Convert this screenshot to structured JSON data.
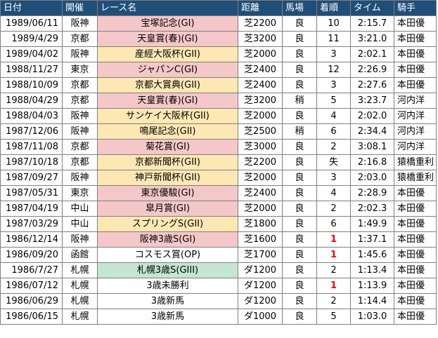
{
  "headers": [
    "日付",
    "開催",
    "レース名",
    "距離",
    "馬場",
    "着順",
    "タイム",
    "騎手"
  ],
  "grade_colors": {
    "G1": "#f4c7c8",
    "G2": "#fde8b4",
    "G3": "#c4e6d3"
  },
  "rows": [
    {
      "date": "1989/06/11",
      "venue": "阪神",
      "race": "宝塚記念(GI)",
      "grade": "G1",
      "distance": "芝2200",
      "track": "良",
      "position": "10",
      "time": "2:15.7",
      "jockey": "本田優"
    },
    {
      "date": "1989/4/29",
      "venue": "京都",
      "race": "天皇賞(春)(GI)",
      "grade": "G1",
      "distance": "芝3200",
      "track": "良",
      "position": "11",
      "time": "3:21.0",
      "jockey": "本田優"
    },
    {
      "date": "1989/04/02",
      "venue": "阪神",
      "race": "産經大阪杯(GII)",
      "grade": "G2",
      "distance": "芝2000",
      "track": "良",
      "position": "3",
      "time": "2:02.1",
      "jockey": "本田優"
    },
    {
      "date": "1988/11/27",
      "venue": "東京",
      "race": "ジャパンC(GI)",
      "grade": "G1",
      "distance": "芝2400",
      "track": "良",
      "position": "12",
      "time": "2:26.9",
      "jockey": "本田優"
    },
    {
      "date": "1988/10/09",
      "venue": "京都",
      "race": "京都大賞典(GII)",
      "grade": "G2",
      "distance": "芝2400",
      "track": "良",
      "position": "3",
      "time": "2:27.6",
      "jockey": "本田優"
    },
    {
      "date": "1988/04/29",
      "venue": "京都",
      "race": "天皇賞(春)(GI)",
      "grade": "G1",
      "distance": "芝3200",
      "track": "稍",
      "position": "5",
      "time": "3:23.7",
      "jockey": "河内洋"
    },
    {
      "date": "1988/04/03",
      "venue": "阪神",
      "race": "サンケイ大阪杯(GII)",
      "grade": "G2",
      "distance": "芝2000",
      "track": "良",
      "position": "4",
      "time": "2:02.0",
      "jockey": "河内洋"
    },
    {
      "date": "1987/12/06",
      "venue": "阪神",
      "race": "鳴尾記念(GII)",
      "grade": "G2",
      "distance": "芝2500",
      "track": "稍",
      "position": "6",
      "time": "2:34.4",
      "jockey": "河内洋"
    },
    {
      "date": "1987/11/08",
      "venue": "京都",
      "race": "菊花賞(GI)",
      "grade": "G1",
      "distance": "芝3000",
      "track": "良",
      "position": "2",
      "time": "3:08.1",
      "jockey": "河内洋"
    },
    {
      "date": "1987/10/18",
      "venue": "京都",
      "race": "京都新聞杯(GII)",
      "grade": "G2",
      "distance": "芝2200",
      "track": "良",
      "position": "失",
      "time": "2:16.8",
      "jockey": "猿橋重利"
    },
    {
      "date": "1987/09/27",
      "venue": "阪神",
      "race": "神戸新聞杯(GII)",
      "grade": "G2",
      "distance": "芝2000",
      "track": "良",
      "position": "3",
      "time": "2:03.0",
      "jockey": "猿橋重利"
    },
    {
      "date": "1987/05/31",
      "venue": "東京",
      "race": "東京優駿(GI)",
      "grade": "G1",
      "distance": "芝2400",
      "track": "良",
      "position": "4",
      "time": "2:28.9",
      "jockey": "本田優"
    },
    {
      "date": "1987/04/19",
      "venue": "中山",
      "race": "皐月賞(GI)",
      "grade": "G1",
      "distance": "芝2000",
      "track": "良",
      "position": "2",
      "time": "2:02.3",
      "jockey": "本田優"
    },
    {
      "date": "1987/03/29",
      "venue": "中山",
      "race": "スプリングS(GII)",
      "grade": "G2",
      "distance": "芝1800",
      "track": "良",
      "position": "6",
      "time": "1:49.9",
      "jockey": "本田優"
    },
    {
      "date": "1986/12/14",
      "venue": "阪神",
      "race": "阪神3歳S(GI)",
      "grade": "G1",
      "distance": "芝1600",
      "track": "良",
      "position": "1",
      "time": "1:37.1",
      "jockey": "本田優"
    },
    {
      "date": "1986/09/20",
      "venue": "函館",
      "race": "コスモス賞(OP)",
      "grade": "",
      "distance": "芝1700",
      "track": "良",
      "position": "1",
      "time": "1:45.6",
      "jockey": "本田優"
    },
    {
      "date": "1986/7/27",
      "venue": "札幌",
      "race": "札幌3歳S(GIII)",
      "grade": "G3",
      "distance": "ダ1200",
      "track": "良",
      "position": "2",
      "time": "1:13.4",
      "jockey": "本田優"
    },
    {
      "date": "1986/07/12",
      "venue": "札幌",
      "race": "3歳未勝利",
      "grade": "",
      "distance": "ダ1200",
      "track": "良",
      "position": "1",
      "time": "1:13.9",
      "jockey": "本田優"
    },
    {
      "date": "1986/06/29",
      "venue": "札幌",
      "race": "3歳新馬",
      "grade": "",
      "distance": "ダ1200",
      "track": "良",
      "position": "2",
      "time": "1:14.4",
      "jockey": "本田優"
    },
    {
      "date": "1986/06/15",
      "venue": "札幌",
      "race": "3歳新馬",
      "grade": "",
      "distance": "ダ1000",
      "track": "良",
      "position": "5",
      "time": "1:03.0",
      "jockey": "本田優"
    }
  ]
}
